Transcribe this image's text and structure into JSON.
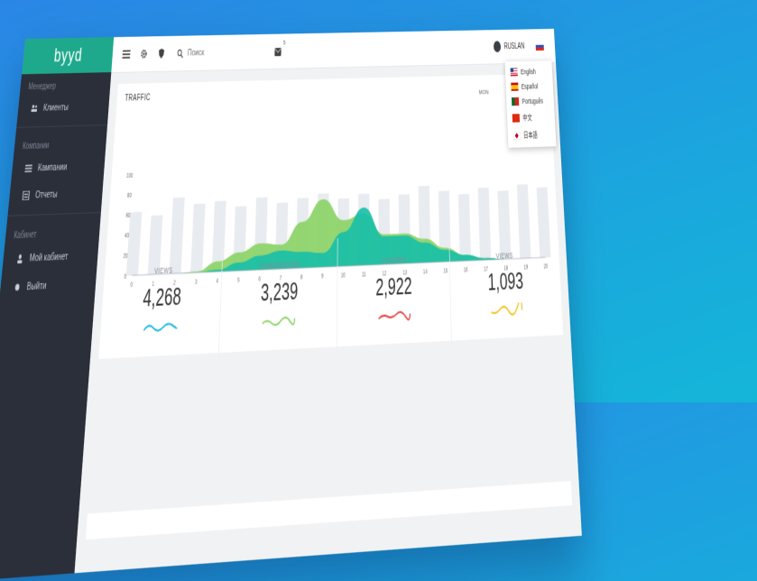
{
  "brand": "byyd",
  "sidebar": {
    "groups": [
      {
        "title": "Менеджер",
        "items": [
          {
            "label": "Клиенты",
            "icon": "users-icon"
          }
        ]
      },
      {
        "title": "Компании",
        "items": [
          {
            "label": "Кампании",
            "icon": "list-icon"
          },
          {
            "label": "Отчеты",
            "icon": "report-icon"
          }
        ]
      },
      {
        "title": "Кабинет",
        "items": [
          {
            "label": "Мой кабинет",
            "icon": "user-icon"
          },
          {
            "label": "Выйти",
            "icon": "logout-icon"
          }
        ]
      }
    ]
  },
  "topbar": {
    "search_placeholder": "Поиск",
    "notification_count": "5",
    "user_name": "RUSLAN"
  },
  "languages": [
    {
      "label": "English",
      "flag": "f-us"
    },
    {
      "label": "Español",
      "flag": "f-es"
    },
    {
      "label": "Português",
      "flag": "f-pt"
    },
    {
      "label": "中文",
      "flag": "f-cn"
    },
    {
      "label": "日本語",
      "flag": "f-jp"
    }
  ],
  "traffic": {
    "title": "TRAFFIC",
    "period": "MON"
  },
  "chart_data": {
    "type": "area",
    "x": [
      0,
      1,
      2,
      3,
      4,
      5,
      6,
      7,
      8,
      9,
      10,
      11,
      12,
      13,
      14,
      15,
      16,
      17,
      18,
      19,
      20
    ],
    "ylim": [
      0,
      100
    ],
    "yticks": [
      0,
      20,
      40,
      60,
      80,
      100
    ],
    "bars": [
      62,
      58,
      75,
      68,
      70,
      64,
      72,
      66,
      70,
      74,
      68,
      72,
      66,
      70,
      78,
      72,
      68,
      74,
      70,
      76,
      72
    ],
    "series": [
      {
        "color": "#8ed46a",
        "values": [
          0,
          0,
          0,
          1,
          10,
          18,
          26,
          24,
          46,
          68,
          46,
          52,
          30,
          30,
          24,
          14,
          6,
          2,
          0,
          0,
          0
        ]
      },
      {
        "color": "#17bfa9",
        "values": [
          0,
          0,
          0,
          0,
          2,
          8,
          14,
          18,
          16,
          14,
          34,
          58,
          28,
          28,
          20,
          12,
          6,
          2,
          0,
          0,
          0
        ]
      }
    ],
    "colors": {
      "bars": "#e8ebef",
      "axis": "#aab1ba"
    }
  },
  "stats": [
    {
      "label": "VIEWS",
      "value": "4,268",
      "color": "#1bb7e6"
    },
    {
      "label": "CONVERSIONS",
      "value": "3,239",
      "color": "#8ed46a"
    },
    {
      "label": "VISITORS",
      "value": "2,922",
      "color": "#e84b4b"
    },
    {
      "label": "VIEWS",
      "value": "1,093",
      "color": "#f2c62b"
    }
  ]
}
